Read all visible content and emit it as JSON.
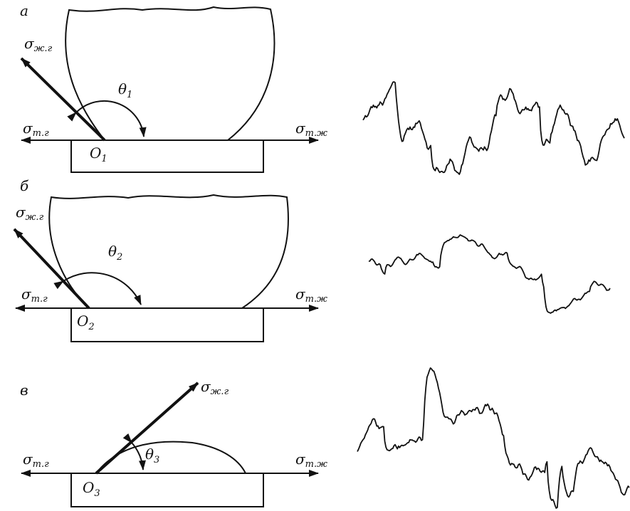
{
  "panels": [
    {
      "label": "а",
      "sigma_lg": {
        "symbol": "σ",
        "subscript": "ж.г"
      },
      "sigma_sg": {
        "symbol": "σ",
        "subscript": "т.г"
      },
      "sigma_sl": {
        "symbol": "σ",
        "subscript": "т.ж"
      },
      "angle": {
        "symbol": "θ",
        "subscript": "1"
      },
      "point": {
        "symbol": "O",
        "subscript": "1"
      }
    },
    {
      "label": "б",
      "sigma_lg": {
        "symbol": "σ",
        "subscript": "ж.г"
      },
      "sigma_sg": {
        "symbol": "σ",
        "subscript": "т.г"
      },
      "sigma_sl": {
        "symbol": "σ",
        "subscript": "т.ж"
      },
      "angle": {
        "symbol": "θ",
        "subscript": "2"
      },
      "point": {
        "symbol": "O",
        "subscript": "2"
      }
    },
    {
      "label": "в",
      "sigma_lg": {
        "symbol": "σ",
        "subscript": "ж.г"
      },
      "sigma_sg": {
        "symbol": "σ",
        "subscript": "т.г"
      },
      "sigma_sl": {
        "symbol": "σ",
        "subscript": "т.ж"
      },
      "angle": {
        "symbol": "θ",
        "subscript": "3"
      },
      "point": {
        "symbol": "O",
        "subscript": "3"
      }
    }
  ]
}
